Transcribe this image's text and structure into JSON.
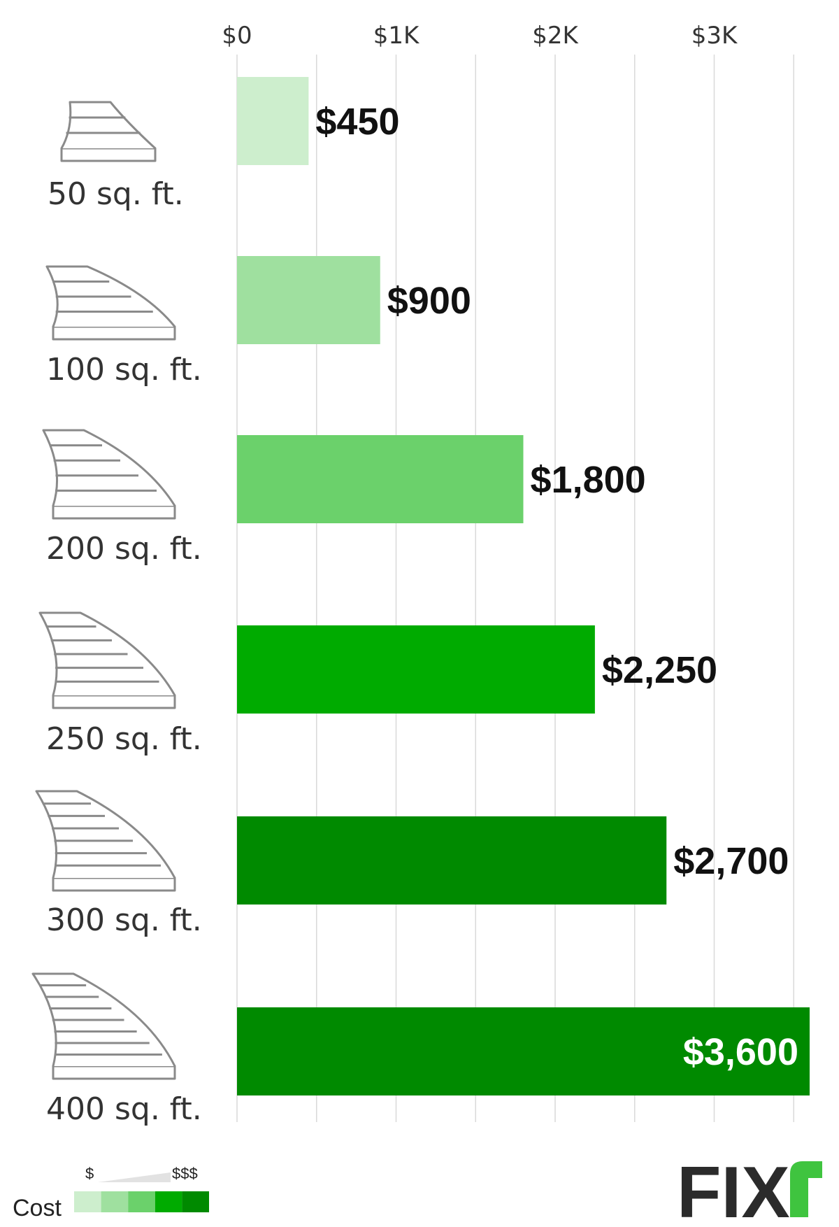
{
  "chart_data": {
    "type": "bar",
    "orientation": "horizontal",
    "categories": [
      "50 sq. ft.",
      "100 sq. ft.",
      "200 sq. ft.",
      "250 sq. ft.",
      "300 sq. ft.",
      "400 sq. ft."
    ],
    "values": [
      450,
      900,
      1800,
      2250,
      2700,
      3600
    ],
    "value_labels": [
      "$450",
      "$900",
      "$1,800",
      "$2,250",
      "$2,700",
      "$3,600"
    ],
    "xlim": [
      0,
      3500
    ],
    "x_ticks": [
      0,
      1000,
      2000,
      3000
    ],
    "x_tick_labels": [
      "$0",
      "$1K",
      "$2K",
      "$3K"
    ],
    "grid": true,
    "tick_position": "top",
    "title": "",
    "xlabel": "",
    "ylabel": ""
  },
  "bar_colors": [
    "#cdeecd",
    "#9fe09f",
    "#6bd16b",
    "#00ab00",
    "#008a00",
    "#008a00"
  ],
  "category_icons": [
    "staircase-1-icon",
    "staircase-2-icon",
    "staircase-3-icon",
    "staircase-4-icon",
    "staircase-5-icon",
    "staircase-6-icon"
  ],
  "legend": {
    "title": "Cost",
    "low_label": "$",
    "high_label": "$$$",
    "swatches": [
      "#cdeecd",
      "#9fe09f",
      "#6bd16b",
      "#00ab00",
      "#008a00"
    ]
  },
  "logo": {
    "text": "FIX",
    "accent_color": "#3fc43f"
  }
}
